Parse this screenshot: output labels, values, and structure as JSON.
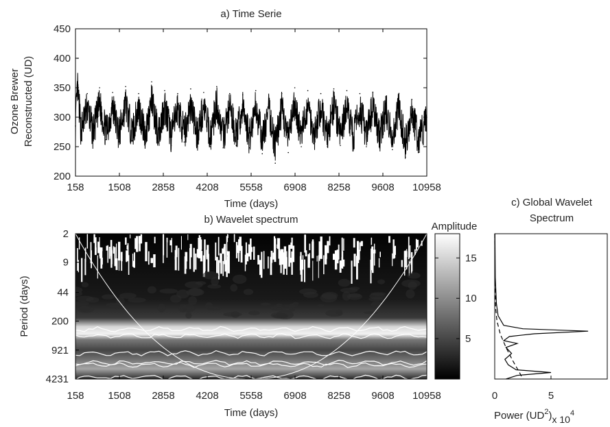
{
  "chart_data": [
    {
      "type": "line",
      "title": "a) Time Serie",
      "xlabel": "Time (days)",
      "ylabel_lines": [
        "Ozone Brewer",
        "Reconstructed (UD)"
      ],
      "xlim": [
        158,
        10958
      ],
      "ylim": [
        200,
        450
      ],
      "x_ticks": [
        158,
        1508,
        2858,
        4208,
        5558,
        6908,
        8258,
        9608,
        10958
      ],
      "y_ticks": [
        200,
        250,
        300,
        350,
        400,
        450
      ],
      "series": [
        {
          "color": "#000000",
          "points": [
            [
              158,
              285
            ],
            [
              220,
              400
            ],
            [
              330,
              268
            ],
            [
              520,
              340
            ],
            [
              700,
              262
            ],
            [
              900,
              350
            ],
            [
              1100,
              262
            ],
            [
              1300,
              342
            ],
            [
              1500,
              258
            ],
            [
              1700,
              352
            ],
            [
              1900,
              260
            ],
            [
              2100,
              340
            ],
            [
              2300,
              255
            ],
            [
              2500,
              360
            ],
            [
              2700,
              258
            ],
            [
              2900,
              345
            ],
            [
              3100,
              252
            ],
            [
              3300,
              340
            ],
            [
              3500,
              258
            ],
            [
              3700,
              348
            ],
            [
              3900,
              255
            ],
            [
              4100,
              342
            ],
            [
              4300,
              250
            ],
            [
              4500,
              352
            ],
            [
              4700,
              248
            ],
            [
              4900,
              340
            ],
            [
              5100,
              252
            ],
            [
              5300,
              338
            ],
            [
              5500,
              248
            ],
            [
              5700,
              345
            ],
            [
              5900,
              238
            ],
            [
              6100,
              332
            ],
            [
              6300,
              222
            ],
            [
              6500,
              340
            ],
            [
              6700,
              240
            ],
            [
              6900,
              350
            ],
            [
              7100,
              250
            ],
            [
              7300,
              345
            ],
            [
              7500,
              255
            ],
            [
              7700,
              340
            ],
            [
              7900,
              250
            ],
            [
              8100,
              348
            ],
            [
              8300,
              252
            ],
            [
              8500,
              345
            ],
            [
              8700,
              248
            ],
            [
              8900,
              340
            ],
            [
              9100,
              250
            ],
            [
              9300,
              342
            ],
            [
              9500,
              250
            ],
            [
              9700,
              335
            ],
            [
              9900,
              245
            ],
            [
              10100,
              340
            ],
            [
              10300,
              232
            ],
            [
              10500,
              330
            ],
            [
              10700,
              240
            ],
            [
              10958,
              300
            ]
          ]
        }
      ]
    },
    {
      "type": "heatmap",
      "title": "b) Wavelet spectrum",
      "xlabel": "Time (days)",
      "ylabel": "Period (days)",
      "xlim": [
        158,
        10958
      ],
      "x_ticks": [
        158,
        1508,
        2858,
        4208,
        5558,
        6908,
        8258,
        9608,
        10958
      ],
      "y_ticks": [
        2,
        9,
        44,
        200,
        921,
        4231
      ],
      "y_scale": "log",
      "colorbar_label": "Amplitude",
      "colorbar_ticks": [
        5,
        10,
        15
      ],
      "colorbar_range": [
        0,
        18
      ],
      "colormap": "gray",
      "band_periods": [
        365,
        1400,
        2800
      ],
      "cone_of_influence": true
    },
    {
      "type": "line",
      "title_lines": [
        "c) Global Wavelet",
        "Spectrum"
      ],
      "xlabel": "Power (UD²)",
      "xlabel_base": "Power (UD",
      "xlabel_sup": "2",
      "xlabel_close": ")",
      "xlabel_multiplier": "x 10",
      "xlabel_exp": "4",
      "x_ticks": [
        0,
        5
      ],
      "xlim": [
        0,
        10
      ],
      "y_scale": "log",
      "ylim": [
        2,
        4231
      ],
      "series": [
        {
          "color": "#000000",
          "points": [
            [
              0.02,
              2
            ],
            [
              0.05,
              20
            ],
            [
              0.15,
              80
            ],
            [
              0.3,
              150
            ],
            [
              0.8,
              250
            ],
            [
              2.5,
              300
            ],
            [
              8.3,
              340
            ],
            [
              3.5,
              390
            ],
            [
              1.3,
              450
            ],
            [
              0.8,
              560
            ],
            [
              2.0,
              650
            ],
            [
              1.0,
              800
            ],
            [
              1.5,
              1100
            ],
            [
              0.9,
              1500
            ],
            [
              1.2,
              2000
            ],
            [
              1.9,
              2600
            ],
            [
              5.0,
              3000
            ],
            [
              2.0,
              3500
            ],
            [
              1.0,
              4231
            ]
          ]
        },
        {
          "color": "#000000",
          "dash": "dashed",
          "points": [
            [
              0.0,
              2
            ],
            [
              0.02,
              30
            ],
            [
              0.08,
              100
            ],
            [
              0.2,
              200
            ],
            [
              0.5,
              400
            ],
            [
              1.0,
              800
            ],
            [
              1.6,
              1600
            ],
            [
              2.2,
              3000
            ],
            [
              2.5,
              4231
            ]
          ]
        }
      ]
    }
  ]
}
